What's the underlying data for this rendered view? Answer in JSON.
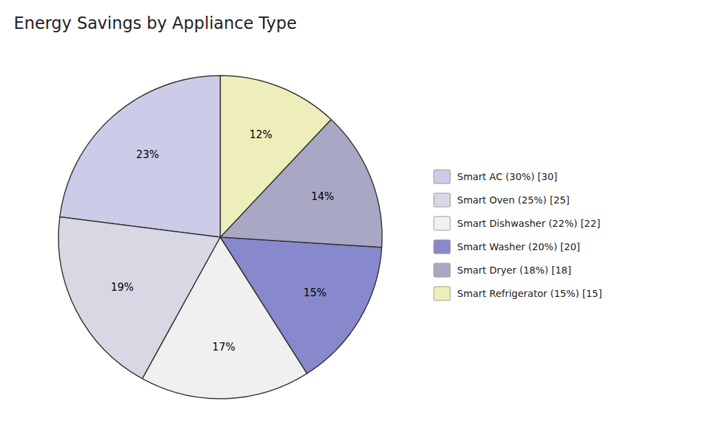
{
  "chart_data": {
    "type": "pie",
    "title": "Energy Savings by Appliance Type",
    "categories": [
      "Smart AC (30%) [30]",
      "Smart Oven (25%) [25]",
      "Smart Dishwasher (22%) [22]",
      "Smart Washer (20%) [20]",
      "Smart Dryer (18%) [18]",
      "Smart Refrigerator (15%) [15]"
    ],
    "values": [
      23,
      19,
      17,
      15,
      14,
      12
    ],
    "value_labels": [
      "23%",
      "19%",
      "17%",
      "15%",
      "14%",
      "12%"
    ],
    "data_labels": true,
    "colors": [
      "#cccce8",
      "#d8d8e4",
      "#f0f0f0",
      "#8888cc",
      "#a8a8c4",
      "#eeeebb"
    ],
    "legend": "right"
  }
}
